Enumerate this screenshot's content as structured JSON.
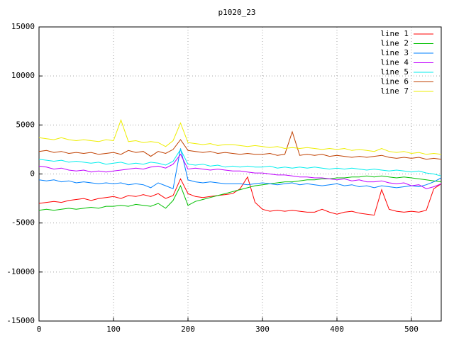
{
  "chart_data": {
    "type": "line",
    "title": "p1020_23",
    "x": [
      0,
      10,
      20,
      30,
      40,
      50,
      60,
      70,
      80,
      90,
      100,
      110,
      120,
      130,
      140,
      150,
      160,
      170,
      180,
      190,
      200,
      210,
      220,
      230,
      240,
      250,
      260,
      270,
      280,
      290,
      300,
      310,
      320,
      330,
      340,
      350,
      360,
      370,
      380,
      390,
      400,
      410,
      420,
      430,
      440,
      450,
      460,
      470,
      480,
      490,
      500,
      510,
      520,
      530,
      540
    ],
    "xlim": [
      0,
      540
    ],
    "xticks": [
      0,
      100,
      200,
      300,
      400,
      500
    ],
    "ylim": [
      -15000,
      15000
    ],
    "yticks": [
      -15000,
      -10000,
      -5000,
      0,
      5000,
      10000,
      15000
    ],
    "grid": true,
    "legend": "top-right",
    "series": [
      {
        "name": "line 1",
        "color": "#ff0000",
        "values": [
          -3000,
          -2900,
          -2800,
          -2900,
          -2700,
          -2600,
          -2500,
          -2700,
          -2500,
          -2400,
          -2300,
          -2500,
          -2200,
          -2300,
          -2100,
          -2300,
          -2000,
          -2500,
          -2200,
          -500,
          -2000,
          -2300,
          -2400,
          -2300,
          -2200,
          -2100,
          -2000,
          -1500,
          -300,
          -2900,
          -3600,
          -3800,
          -3700,
          -3800,
          -3700,
          -3800,
          -3900,
          -3900,
          -3600,
          -3900,
          -4100,
          -3900,
          -3800,
          -4000,
          -4100,
          -4200,
          -1600,
          -3600,
          -3800,
          -3900,
          -3800,
          -3900,
          -3700,
          -1500,
          -1000
        ]
      },
      {
        "name": "line 2",
        "color": "#00c000",
        "values": [
          -3700,
          -3600,
          -3700,
          -3600,
          -3500,
          -3600,
          -3500,
          -3400,
          -3500,
          -3300,
          -3300,
          -3200,
          -3300,
          -3100,
          -3200,
          -3300,
          -3000,
          -3500,
          -2700,
          -1200,
          -3200,
          -2800,
          -2600,
          -2400,
          -2200,
          -2000,
          -1800,
          -1600,
          -1400,
          -1200,
          -1100,
          -1000,
          -900,
          -800,
          -800,
          -700,
          -600,
          -600,
          -500,
          -500,
          -400,
          -400,
          -300,
          -300,
          -200,
          -300,
          -200,
          -300,
          -400,
          -300,
          -400,
          -500,
          -600,
          -700,
          -800
        ]
      },
      {
        "name": "line 3",
        "color": "#0080ff",
        "values": [
          -600,
          -700,
          -600,
          -800,
          -700,
          -900,
          -800,
          -900,
          -1000,
          -900,
          -1000,
          -900,
          -1100,
          -1000,
          -1100,
          -1400,
          -900,
          -1200,
          -1500,
          2600,
          -600,
          -800,
          -900,
          -800,
          -900,
          -1000,
          -1000,
          -1000,
          -1100,
          -1000,
          -900,
          -1000,
          -1100,
          -1000,
          -900,
          -1100,
          -1000,
          -1100,
          -1200,
          -1100,
          -1000,
          -1200,
          -1100,
          -1300,
          -1200,
          -1400,
          -1200,
          -1300,
          -1400,
          -1300,
          -1200,
          -1300,
          -1100,
          -800,
          -400
        ]
      },
      {
        "name": "line 4",
        "color": "#c000ff",
        "values": [
          800,
          700,
          500,
          600,
          400,
          300,
          400,
          200,
          300,
          200,
          300,
          400,
          500,
          600,
          500,
          700,
          800,
          600,
          1000,
          2000,
          500,
          600,
          500,
          400,
          500,
          400,
          300,
          300,
          200,
          100,
          100,
          0,
          -100,
          -100,
          -200,
          -300,
          -300,
          -400,
          -400,
          -500,
          -600,
          -500,
          -700,
          -600,
          -800,
          -800,
          -700,
          -900,
          -1000,
          -900,
          -1200,
          -1100,
          -1500,
          -1300,
          -1000
        ]
      },
      {
        "name": "line 5",
        "color": "#00eeee",
        "values": [
          1500,
          1400,
          1300,
          1400,
          1200,
          1300,
          1200,
          1100,
          1200,
          1000,
          1100,
          1200,
          1000,
          1100,
          1000,
          1200,
          1100,
          900,
          1300,
          2500,
          1000,
          900,
          1000,
          800,
          900,
          700,
          800,
          700,
          800,
          700,
          700,
          800,
          600,
          700,
          600,
          700,
          600,
          700,
          600,
          500,
          600,
          500,
          600,
          500,
          400,
          500,
          400,
          300,
          400,
          300,
          200,
          300,
          100,
          0,
          -200
        ]
      },
      {
        "name": "line 6",
        "color": "#c04000",
        "values": [
          2300,
          2400,
          2200,
          2300,
          2100,
          2200,
          2100,
          2200,
          2000,
          2100,
          2200,
          2000,
          2400,
          2200,
          2300,
          1800,
          2300,
          2100,
          2500,
          3500,
          2400,
          2300,
          2200,
          2300,
          2100,
          2200,
          2100,
          2000,
          2100,
          2000,
          2000,
          2100,
          1900,
          2000,
          4300,
          1900,
          2000,
          1900,
          2000,
          1800,
          1900,
          1800,
          1700,
          1800,
          1700,
          1800,
          1900,
          1700,
          1600,
          1700,
          1600,
          1700,
          1500,
          1600,
          1500
        ]
      },
      {
        "name": "line 7",
        "color": "#eeee00",
        "values": [
          3700,
          3600,
          3500,
          3700,
          3500,
          3400,
          3500,
          3400,
          3300,
          3500,
          3400,
          5500,
          3300,
          3400,
          3200,
          3300,
          3200,
          2800,
          3400,
          5200,
          3200,
          3100,
          3000,
          3100,
          2900,
          3000,
          3000,
          2900,
          2800,
          2900,
          2800,
          2700,
          2800,
          2600,
          2700,
          2600,
          2700,
          2600,
          2500,
          2600,
          2500,
          2600,
          2400,
          2500,
          2400,
          2300,
          2600,
          2300,
          2200,
          2300,
          2100,
          2200,
          2000,
          2100,
          2000
        ]
      }
    ]
  }
}
